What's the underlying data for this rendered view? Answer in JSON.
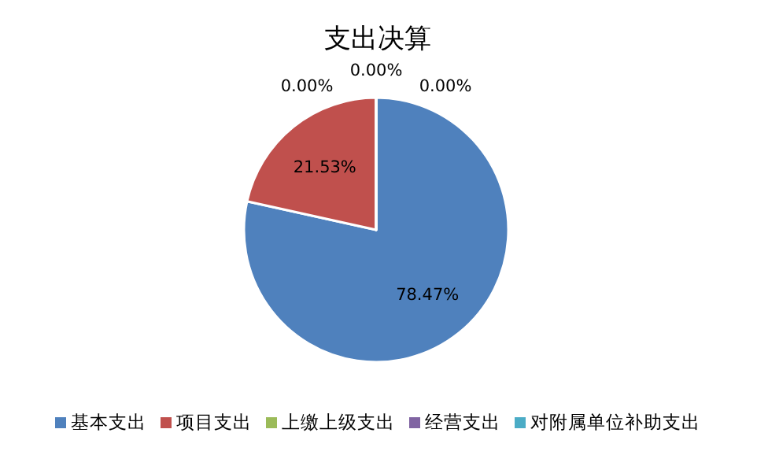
{
  "chart_data": {
    "type": "pie",
    "title": "支出决算",
    "categories": [
      "基本支出",
      "项目支出",
      "上缴上级支出",
      "经营支出",
      "对附属单位补助支出"
    ],
    "values": [
      78.47,
      21.53,
      0,
      0,
      0
    ],
    "colors": [
      "#4f81bd",
      "#c0504d",
      "#9bbb59",
      "#8064a2",
      "#4bacc6"
    ],
    "value_labels": [
      "78.47%",
      "21.53%",
      "0.00%",
      "0.00%",
      "0.00%"
    ],
    "legend": "bottom"
  }
}
